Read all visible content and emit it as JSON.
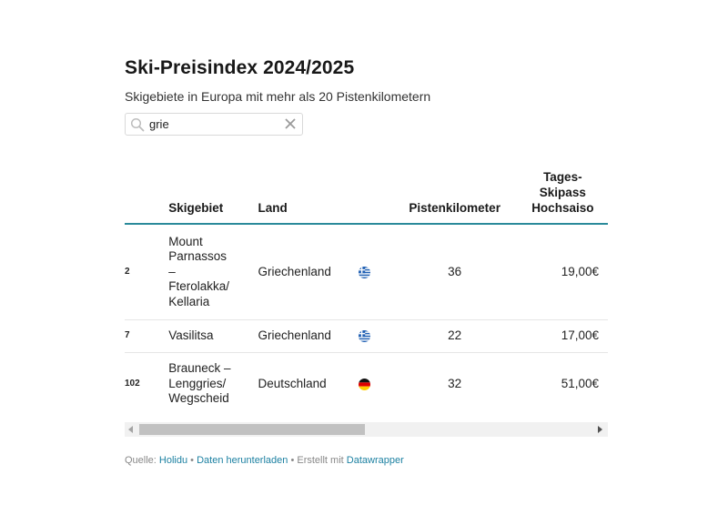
{
  "title": "Ski-Preisindex 2024/2025",
  "subtitle": "Skigebiete in Europa mit mehr als 20 Pistenkilometern",
  "search": {
    "value": "grie",
    "placeholder": ""
  },
  "table": {
    "headers": {
      "skigebiet": "Skigebiet",
      "land": "Land",
      "pistenkilometer": "Pistenkilometer",
      "price_line1": "Tages-",
      "price_line2": "Skipass",
      "price_line3": "Hochsaiso"
    },
    "rows": [
      {
        "rank": "2",
        "name_lines": [
          "Mount",
          "Parnassos",
          "–",
          "Fterolakka/",
          "Kellaria"
        ],
        "land": "Griechenland",
        "flag": "greece-flag",
        "km": "36",
        "price": "19,00€"
      },
      {
        "rank": "7",
        "name_lines": [
          "Vasilitsa"
        ],
        "land": "Griechenland",
        "flag": "greece-flag",
        "km": "22",
        "price": "17,00€"
      },
      {
        "rank": "102",
        "name_lines": [
          "Brauneck –",
          "Lenggries/",
          "Wegscheid"
        ],
        "land": "Deutschland",
        "flag": "germany-flag",
        "km": "32",
        "price": "51,00€"
      }
    ]
  },
  "footer": {
    "quelle_label": "Quelle:",
    "quelle_link": "Holidu",
    "sep1": "•",
    "download_link": "Daten herunterladen",
    "sep2": "•",
    "erstellt_label": "Erstellt mit",
    "datawrapper_link": "Datawrapper"
  },
  "colors": {
    "accent": "#2a8a9a",
    "link": "#1d81a2"
  }
}
